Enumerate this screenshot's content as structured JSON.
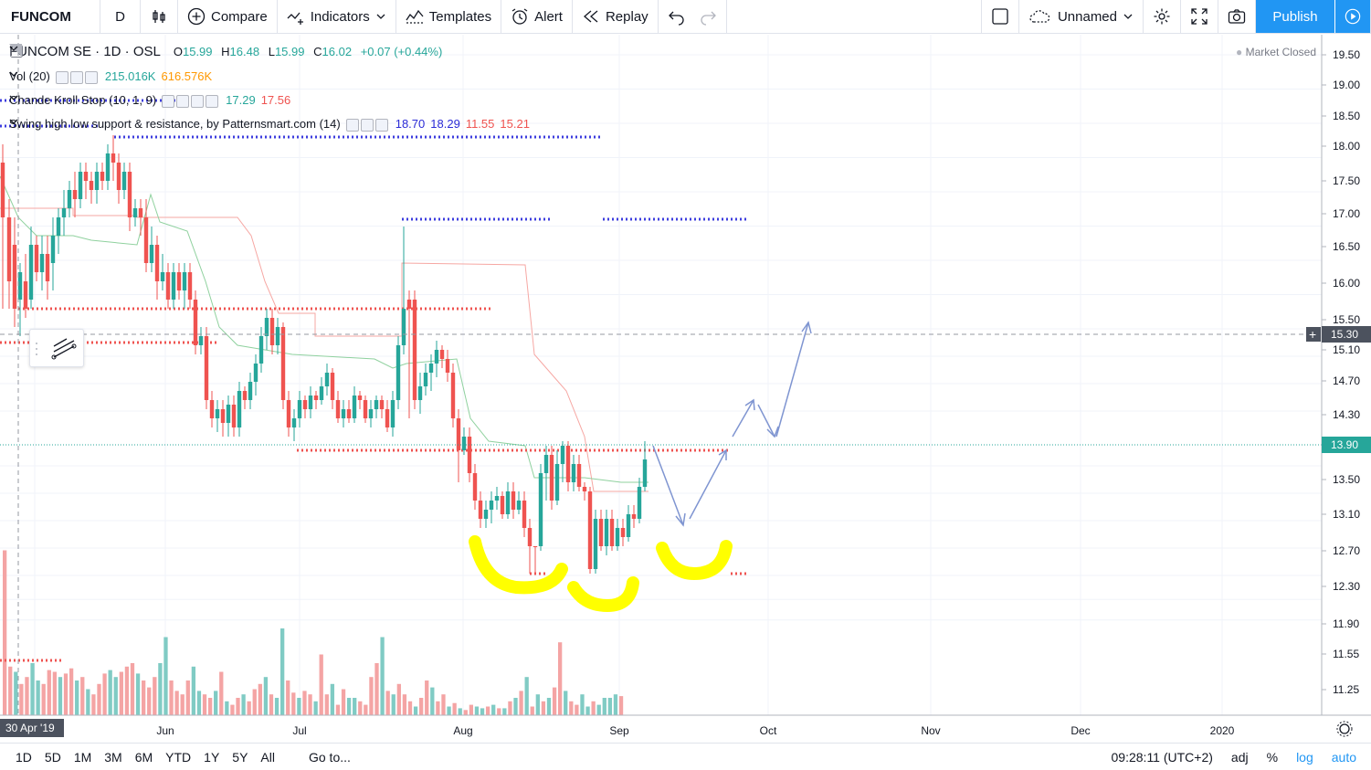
{
  "topbar": {
    "symbol": "FUNCOM",
    "interval": "D",
    "compare": "Compare",
    "indicators": "Indicators",
    "templates": "Templates",
    "alert": "Alert",
    "replay": "Replay",
    "layout_name": "Unnamed",
    "publish": "Publish"
  },
  "legend": {
    "title": "FUNCOM SE · 1D · OSL",
    "open_label": "O",
    "open": "15.99",
    "high_label": "H",
    "high": "16.48",
    "low_label": "L",
    "low": "15.99",
    "close_label": "C",
    "close": "16.02",
    "change": "+0.07 (+0.44%)",
    "vol_name": "Vol (20)",
    "vol_v1": "215.016K",
    "vol_v2": "616.576K",
    "ck_name": "Chande Kroll Stop (10, 1, 9)",
    "ck_v1": "17.29",
    "ck_v2": "17.56",
    "sw_name": "Swing high low support & resistance, by Patternsmart.com (14)",
    "sw_v1": "18.70",
    "sw_v2": "18.29",
    "sw_v3": "11.55",
    "sw_v4": "15.21"
  },
  "market_status": "Market Closed",
  "chart_data": {
    "type": "candlestick",
    "ylim": [
      10.9,
      19.7
    ],
    "price_ticks": [
      "19.50",
      "19.00",
      "18.50",
      "18.00",
      "17.50",
      "17.00",
      "16.50",
      "16.00",
      "15.50",
      "15.10",
      "14.70",
      "14.30",
      "13.50",
      "13.10",
      "12.70",
      "12.30",
      "11.90",
      "11.55",
      "11.25"
    ],
    "price_values": [
      19.5,
      19.0,
      18.5,
      18.0,
      17.5,
      17.0,
      16.5,
      16.0,
      15.5,
      15.1,
      14.7,
      14.3,
      13.5,
      13.1,
      12.7,
      12.3,
      11.9,
      11.55,
      11.25
    ],
    "crosshair_price": "15.30",
    "last_price": "13.90",
    "time_labels": [
      "30 Apr '19",
      "Jun",
      "Jul",
      "Aug",
      "Sep",
      "Oct",
      "Nov",
      "Dec",
      "2020"
    ],
    "colors": {
      "up": "#26a69a",
      "down": "#ef5350",
      "volume_up": "#80cbc4",
      "volume_down": "#f4a4a4",
      "ck_long": "#f6a7a3",
      "ck_short": "#8fd19e",
      "swing_high": "#3d3dde",
      "swing_low": "#ef5350",
      "arrow": "#7f95d1",
      "highlight": "#ffff00",
      "last_price": "#26a69a"
    }
  },
  "bottombar": {
    "ranges": [
      "1D",
      "5D",
      "1M",
      "3M",
      "6M",
      "YTD",
      "1Y",
      "5Y",
      "All"
    ],
    "goto": "Go to...",
    "time": "09:28:11 (UTC+2)",
    "adj": "adj",
    "pct": "%",
    "log": "log",
    "auto": "auto"
  }
}
